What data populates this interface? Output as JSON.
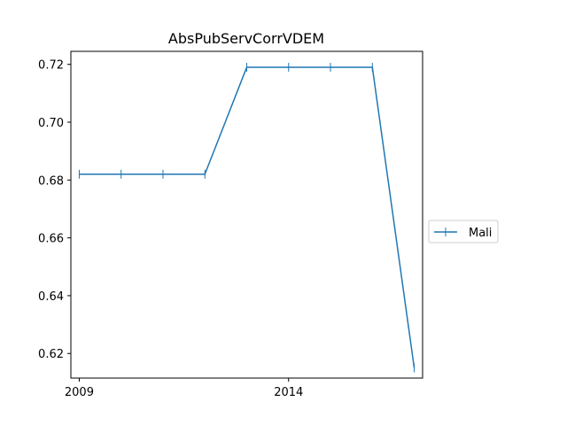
{
  "chart_data": {
    "type": "line",
    "title": "AbsPubServCorrVDEM",
    "xlabel": "",
    "ylabel": "",
    "x_ticks": [
      "2009",
      "2014"
    ],
    "y_ticks": [
      "0.62",
      "0.64",
      "0.66",
      "0.68",
      "0.70",
      "0.72"
    ],
    "xlim": [
      2008.8,
      2017.2
    ],
    "ylim": [
      0.6115,
      0.7245
    ],
    "grid": false,
    "legend_position": "center-right-outside",
    "marker": "vertical-tick",
    "series": [
      {
        "name": "Mali",
        "color": "#1f77b4",
        "x": [
          2009,
          2010,
          2011,
          2012,
          2013,
          2014,
          2015,
          2016,
          2017
        ],
        "y": [
          0.682,
          0.682,
          0.682,
          0.682,
          0.719,
          0.719,
          0.719,
          0.719,
          0.615
        ]
      }
    ]
  }
}
